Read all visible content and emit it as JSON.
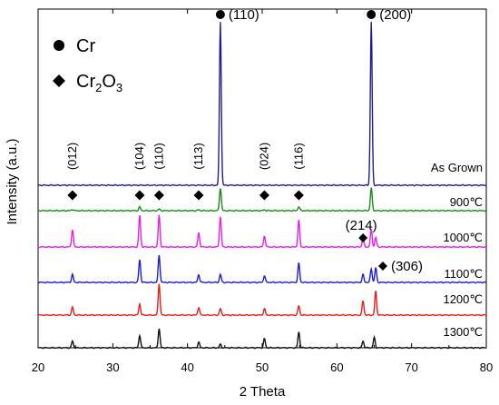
{
  "chart_data": {
    "type": "line",
    "xlabel": "2 Theta",
    "ylabel": "Intensity (a.u.)",
    "xlim": [
      20,
      80
    ],
    "xticks": [
      "20",
      "30",
      "40",
      "50",
      "60",
      "70",
      "80"
    ],
    "grid": false,
    "legend": {
      "placement": "top-left",
      "entries": [
        {
          "marker": "circle",
          "label": "Cr",
          "base": "Cr",
          "sub": ""
        },
        {
          "marker": "diamond",
          "label": "Cr2O3",
          "base": "Cr",
          "sub": "2",
          "base2": "O",
          "sub2": "3"
        }
      ]
    },
    "series": [
      {
        "name": "As Grown",
        "color": "#1f1f8a",
        "peaks": [
          [
            44.4,
            1.0
          ],
          [
            64.6,
            1.0
          ]
        ]
      },
      {
        "name": "900℃",
        "color": "#1b8a1b",
        "peaks": [
          [
            24.6,
            0.06
          ],
          [
            33.6,
            0.16
          ],
          [
            36.2,
            0.07
          ],
          [
            41.5,
            0.04
          ],
          [
            44.4,
            1.0
          ],
          [
            50.3,
            0.04
          ],
          [
            54.9,
            0.18
          ],
          [
            64.6,
            1.0
          ]
        ]
      },
      {
        "name": "1000℃",
        "color": "#e81ee8",
        "peaks": [
          [
            24.6,
            0.55
          ],
          [
            33.6,
            1.0
          ],
          [
            36.2,
            1.0
          ],
          [
            41.5,
            0.45
          ],
          [
            44.4,
            0.95
          ],
          [
            50.3,
            0.35
          ],
          [
            54.9,
            0.85
          ],
          [
            63.5,
            0.3
          ],
          [
            64.6,
            0.55
          ],
          [
            65.2,
            0.3
          ]
        ]
      },
      {
        "name": "1100℃",
        "color": "#1c1cd6",
        "peaks": [
          [
            24.6,
            0.35
          ],
          [
            33.6,
            1.0
          ],
          [
            36.2,
            1.2
          ],
          [
            41.5,
            0.35
          ],
          [
            44.4,
            0.35
          ],
          [
            50.3,
            0.3
          ],
          [
            54.9,
            0.85
          ],
          [
            63.5,
            0.35
          ],
          [
            64.6,
            0.6
          ],
          [
            65.2,
            0.65
          ]
        ]
      },
      {
        "name": "1200℃",
        "color": "#e81c1c",
        "peaks": [
          [
            24.6,
            0.25
          ],
          [
            33.6,
            0.35
          ],
          [
            36.2,
            1.0
          ],
          [
            41.5,
            0.25
          ],
          [
            44.4,
            0.2
          ],
          [
            50.3,
            0.2
          ],
          [
            54.9,
            0.3
          ],
          [
            63.5,
            0.45
          ],
          [
            65.2,
            0.75
          ]
        ]
      },
      {
        "name": "1300℃",
        "color": "#111111",
        "peaks": [
          [
            24.6,
            0.3
          ],
          [
            33.6,
            0.55
          ],
          [
            36.2,
            0.85
          ],
          [
            41.5,
            0.25
          ],
          [
            44.4,
            0.15
          ],
          [
            50.3,
            0.4
          ],
          [
            54.9,
            0.7
          ],
          [
            63.5,
            0.3
          ],
          [
            65.0,
            0.45
          ]
        ]
      }
    ],
    "annotations": {
      "cr_peaks": [
        {
          "label": "(110)",
          "x": 44.4
        },
        {
          "label": "(200)",
          "x": 64.6
        }
      ],
      "cr2o3_peaks": [
        {
          "label": "(012)",
          "x": 24.6
        },
        {
          "label": "(104)",
          "x": 33.6
        },
        {
          "label": "(110)",
          "x": 36.2
        },
        {
          "label": "(113)",
          "x": 41.5
        },
        {
          "label": "(024)",
          "x": 50.3
        },
        {
          "label": "(116)",
          "x": 54.9
        }
      ],
      "extra_peaks": [
        {
          "label": "(214)",
          "x": 63.5
        },
        {
          "label": "(306)",
          "x": 65.3
        }
      ]
    }
  }
}
